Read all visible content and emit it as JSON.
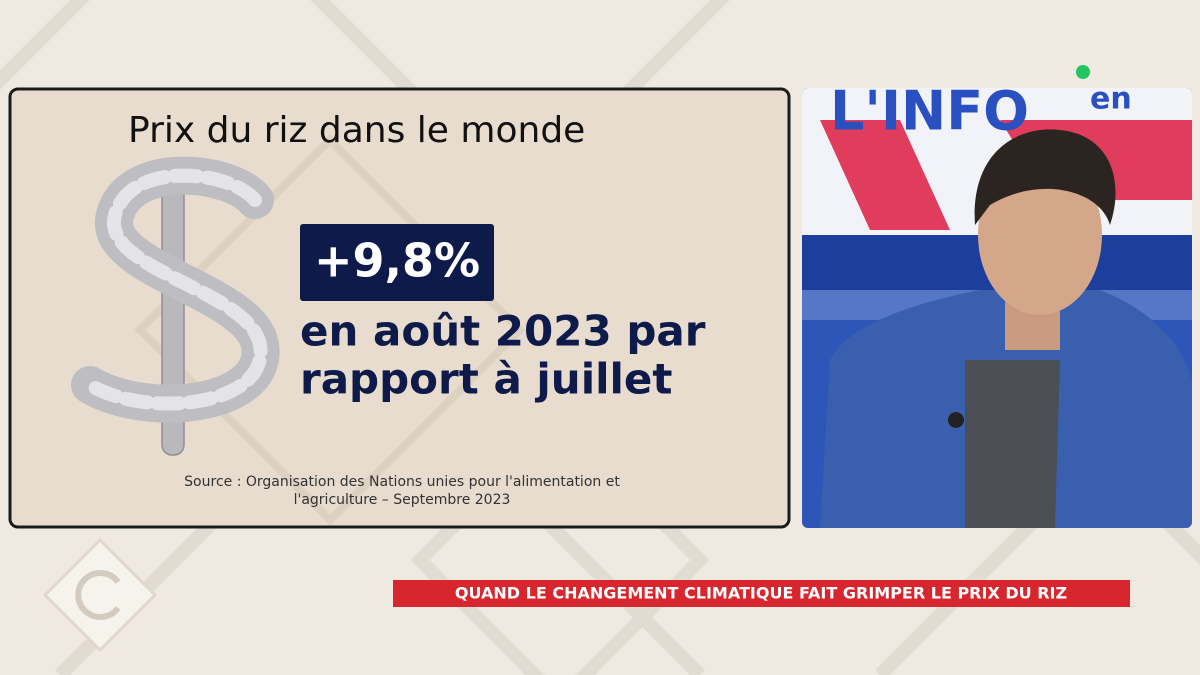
{
  "card": {
    "title": "Prix du riz dans le monde",
    "highlight": "+9,8%",
    "lines": [
      "en août 2023 par",
      "rapport à juillet"
    ],
    "source": [
      "Source : Organisation des Nations unies pour l'alimentation et",
      "l'agriculture – Septembre 2023"
    ]
  },
  "studio": {
    "logo": [
      "L'INFO",
      "en"
    ]
  },
  "banner": {
    "text": "QUAND LE CHANGEMENT CLIMATIQUE FAIT GRIMPER LE PRIX DU RIZ"
  }
}
